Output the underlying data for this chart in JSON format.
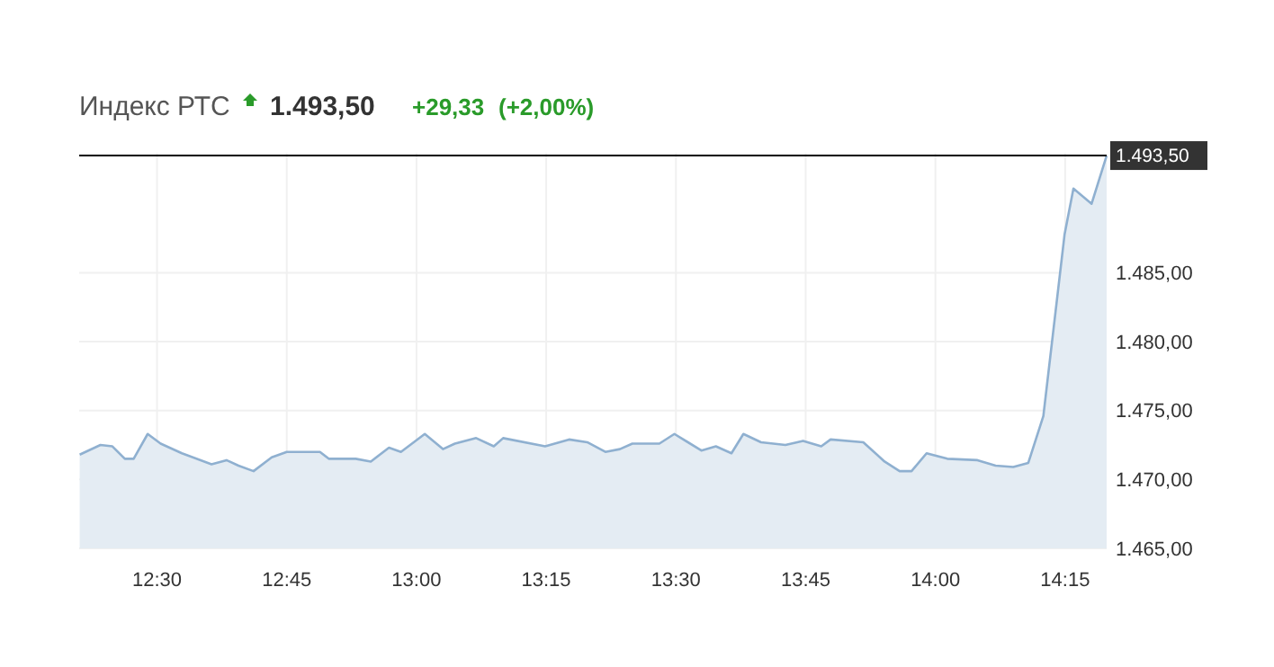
{
  "chart_data": {
    "type": "area",
    "title": "Индекс РТС",
    "annotations": [
      "1.493,50",
      "+29,33",
      "(+2,00%)"
    ],
    "x": [
      12.351,
      12.391,
      12.414,
      12.438,
      12.455,
      12.482,
      12.507,
      12.548,
      12.605,
      12.634,
      12.657,
      12.686,
      12.721,
      12.75,
      12.814,
      12.831,
      12.883,
      12.912,
      12.947,
      12.97,
      13.016,
      13.051,
      13.074,
      13.115,
      13.149,
      13.167,
      13.248,
      13.294,
      13.329,
      13.364,
      13.392,
      13.416,
      13.468,
      13.497,
      13.549,
      13.577,
      13.607,
      13.63,
      13.664,
      13.711,
      13.745,
      13.78,
      13.798,
      13.861,
      13.902,
      13.931,
      13.954,
      13.983,
      14.023,
      14.081,
      14.116,
      14.15,
      14.179,
      14.208,
      14.249,
      14.266,
      14.301,
      14.33
    ],
    "series": [
      {
        "color": "#8fb0d0",
        "values": [
          1471.8,
          1472.5,
          1472.4,
          1471.5,
          1471.5,
          1473.3,
          1472.6,
          1471.9,
          1471.1,
          1471.4,
          1471.0,
          1470.6,
          1471.6,
          1472.0,
          1472.0,
          1471.5,
          1471.5,
          1471.3,
          1472.3,
          1472.0,
          1473.3,
          1472.2,
          1472.6,
          1473.0,
          1472.4,
          1473.0,
          1472.4,
          1472.9,
          1472.7,
          1472.0,
          1472.2,
          1472.6,
          1472.6,
          1473.3,
          1472.1,
          1472.4,
          1471.9,
          1473.3,
          1472.7,
          1472.5,
          1472.8,
          1472.4,
          1472.9,
          1472.7,
          1471.3,
          1470.6,
          1470.6,
          1471.9,
          1471.5,
          1471.4,
          1471.0,
          1470.9,
          1471.2,
          1474.6,
          1487.8,
          1491.1,
          1490.0,
          1493.5
        ]
      }
    ],
    "xlim": [
      12.35,
      14.33
    ],
    "ylim": [
      1465,
      1493.7
    ],
    "xticks": [
      {
        "value": 12.5,
        "label": "12:30"
      },
      {
        "value": 12.75,
        "label": "12:45"
      },
      {
        "value": 13,
        "label": "13:00"
      },
      {
        "value": 13.25,
        "label": "13:15"
      },
      {
        "value": 13.5,
        "label": "13:30"
      },
      {
        "value": 13.75,
        "label": "13:45"
      },
      {
        "value": 14,
        "label": "14:00"
      },
      {
        "value": 14.25,
        "label": "14:15"
      }
    ],
    "yticks": [
      {
        "value": 1465,
        "label": "1.465,00"
      },
      {
        "value": 1470,
        "label": "1.470,00"
      },
      {
        "value": 1475,
        "label": "1.475,00"
      },
      {
        "value": 1480,
        "label": "1.480,00"
      },
      {
        "value": 1485,
        "label": "1.485,00"
      }
    ],
    "ref_lines": [
      {
        "axis": "y",
        "value": 1493.5,
        "label": "1.493,50",
        "color": "#000000"
      }
    ],
    "grid": true
  }
}
